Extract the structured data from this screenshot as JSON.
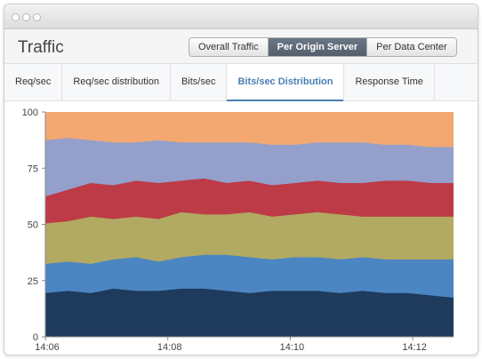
{
  "window": {
    "title": ""
  },
  "header": {
    "title": "Traffic",
    "buttons": [
      {
        "label": "Overall Traffic",
        "active": false
      },
      {
        "label": "Per Origin Server",
        "active": true
      },
      {
        "label": "Per Data Center",
        "active": false
      }
    ]
  },
  "tabs": [
    {
      "label": "Req/sec",
      "active": false
    },
    {
      "label": "Req/sec distribution",
      "active": false
    },
    {
      "label": "Bits/sec",
      "active": false
    },
    {
      "label": "Bits/sec Distribution",
      "active": true
    },
    {
      "label": "Response Time",
      "active": false
    }
  ],
  "chart_data": {
    "type": "area",
    "stacked": true,
    "percent": true,
    "ylim": [
      0,
      100
    ],
    "yticks": [
      "0",
      "25",
      "50",
      "75",
      "100"
    ],
    "xticks": [
      "14:06",
      "14:08",
      "14:10",
      "14:12"
    ],
    "grid": false,
    "legend": "none",
    "colors": [
      "#1e3a5c",
      "#4b86c2",
      "#b2a962",
      "#bd3b47",
      "#94a0cb",
      "#f3a872"
    ],
    "boundaries": [
      [
        19,
        20,
        19,
        21,
        20,
        20,
        21,
        21,
        20,
        19,
        20,
        20,
        20,
        19,
        20,
        19,
        19,
        18,
        17
      ],
      [
        32,
        33,
        32,
        34,
        35,
        33,
        35,
        36,
        36,
        35,
        34,
        35,
        35,
        34,
        35,
        34,
        34,
        34,
        34
      ],
      [
        50,
        51,
        53,
        52,
        53,
        52,
        55,
        54,
        54,
        55,
        53,
        54,
        55,
        54,
        53,
        53,
        53,
        53,
        53
      ],
      [
        62,
        65,
        68,
        67,
        69,
        68,
        69,
        70,
        68,
        69,
        67,
        68,
        69,
        68,
        68,
        69,
        69,
        68,
        68
      ],
      [
        87,
        88,
        87,
        86,
        86,
        87,
        86,
        86,
        86,
        86,
        85,
        85,
        86,
        86,
        86,
        85,
        85,
        84,
        84
      ],
      [
        100,
        100,
        100,
        100,
        100,
        100,
        100,
        100,
        100,
        100,
        100,
        100,
        100,
        100,
        100,
        100,
        100,
        100,
        100
      ]
    ],
    "x_start": "14:06",
    "x_end": "14:12:40"
  }
}
